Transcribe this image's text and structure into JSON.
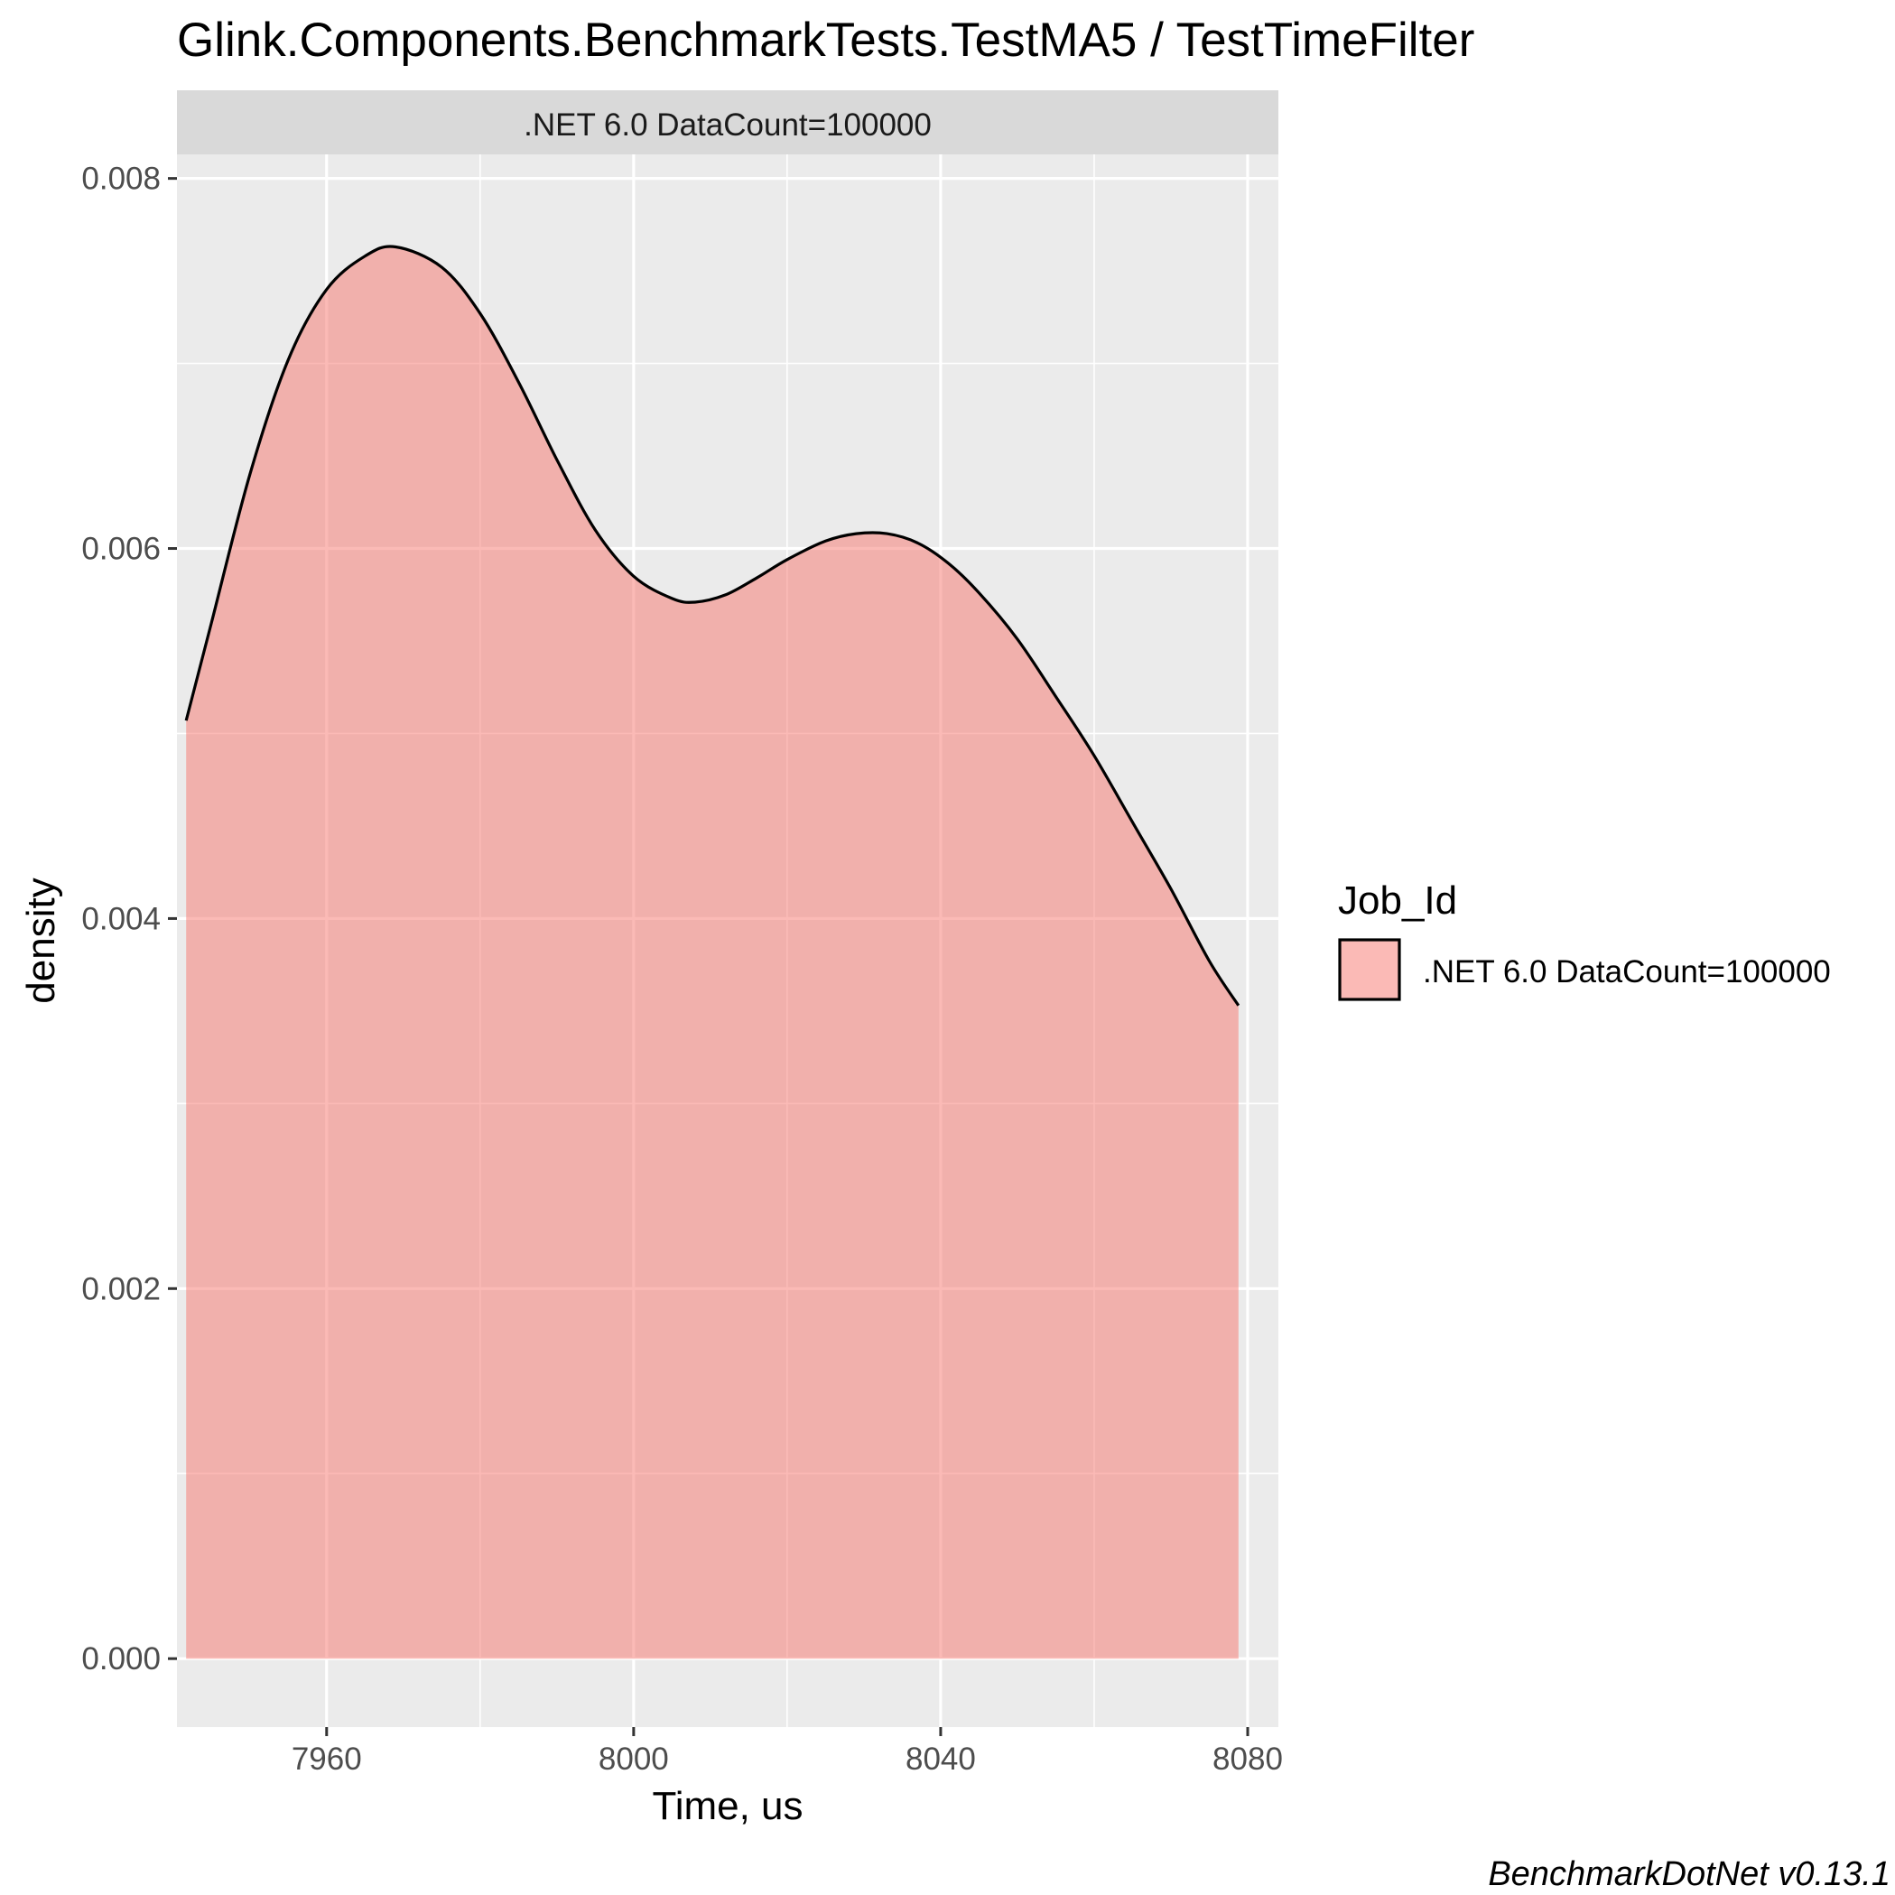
{
  "title": "Glink.Components.BenchmarkTests.TestMA5 / TestTimeFilter",
  "caption": "BenchmarkDotNet v0.13.1",
  "colors": {
    "panel": "#ebebeb",
    "grid": "#ffffff",
    "strip": "#d9d9d9",
    "fill": "#f8766d",
    "outline": "#000000"
  },
  "chart_data": {
    "type": "area",
    "facet_label": ".NET 6.0 DataCount=100000",
    "xlabel": "Time, us",
    "ylabel": "density",
    "xlim": [
      7940.5,
      8084.0
    ],
    "ylim": [
      -0.00037,
      0.00813
    ],
    "x_ticks": [
      {
        "value": 7960,
        "label": "7960"
      },
      {
        "value": 8000,
        "label": "8000"
      },
      {
        "value": 8040,
        "label": "8040"
      },
      {
        "value": 8080,
        "label": "8080"
      }
    ],
    "y_ticks": [
      {
        "value": 0.0,
        "label": "0.000"
      },
      {
        "value": 0.002,
        "label": "0.002"
      },
      {
        "value": 0.004,
        "label": "0.004"
      },
      {
        "value": 0.006,
        "label": "0.006"
      },
      {
        "value": 0.008,
        "label": "0.008"
      }
    ],
    "grid": true,
    "legend": {
      "title": "Job_Id",
      "position": "right",
      "entries": [
        ".NET 6.0 DataCount=100000"
      ]
    },
    "series": [
      {
        "name": ".NET 6.0 DataCount=100000",
        "x": [
          7941.7,
          7945,
          7950,
          7955,
          7960,
          7965,
          7969,
          7975,
          7980,
          7985,
          7990,
          7995,
          8000,
          8005,
          8008,
          8012,
          8016,
          8020,
          8025,
          8029,
          8033,
          8037,
          8041,
          8045,
          8050,
          8055,
          8060,
          8065,
          8070,
          8075,
          8078.8
        ],
        "y": [
          0.00507,
          0.0056,
          0.0064,
          0.00702,
          0.0074,
          0.00758,
          0.00763,
          0.00752,
          0.00727,
          0.0069,
          0.00648,
          0.0061,
          0.00585,
          0.00573,
          0.00571,
          0.00575,
          0.00584,
          0.00594,
          0.00604,
          0.00608,
          0.00608,
          0.00603,
          0.00592,
          0.00576,
          0.00551,
          0.0052,
          0.00488,
          0.00452,
          0.00416,
          0.00377,
          0.00353
        ]
      }
    ]
  }
}
